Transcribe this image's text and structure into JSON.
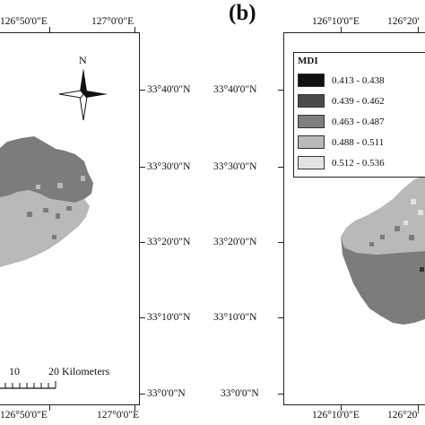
{
  "panel_a": {
    "lon_labels": [
      "126°50'0\"E",
      "127°0'0\"E"
    ],
    "lat_labels": [
      "33°40'0\"N",
      "33°30'0\"N",
      "33°20'0\"N",
      "33°10'0\"N",
      "33°0'0\"N"
    ],
    "north_label": "N",
    "scale_bar": {
      "labels": [
        "10",
        "20 Kilometers"
      ]
    }
  },
  "panel_b": {
    "letter": "(b)",
    "lon_labels": [
      "126°10'0\"E",
      "126°20'"
    ],
    "lat_labels": [
      "33°40'0\"N",
      "33°30'0\"N",
      "33°20'0\"N",
      "33°10'0\"N",
      "33°0'0\"N"
    ],
    "legend": {
      "title": "MDI",
      "items": [
        {
          "range": "0.413 - 0.438",
          "color": "#111111"
        },
        {
          "range": "0.439 - 0.462",
          "color": "#4a4a4a"
        },
        {
          "range": "0.463 - 0.487",
          "color": "#7f7f7f"
        },
        {
          "range": "0.488 - 0.511",
          "color": "#b9b9b9"
        },
        {
          "range": "0.512 - 0.536",
          "color": "#e3e3e3"
        }
      ]
    }
  }
}
